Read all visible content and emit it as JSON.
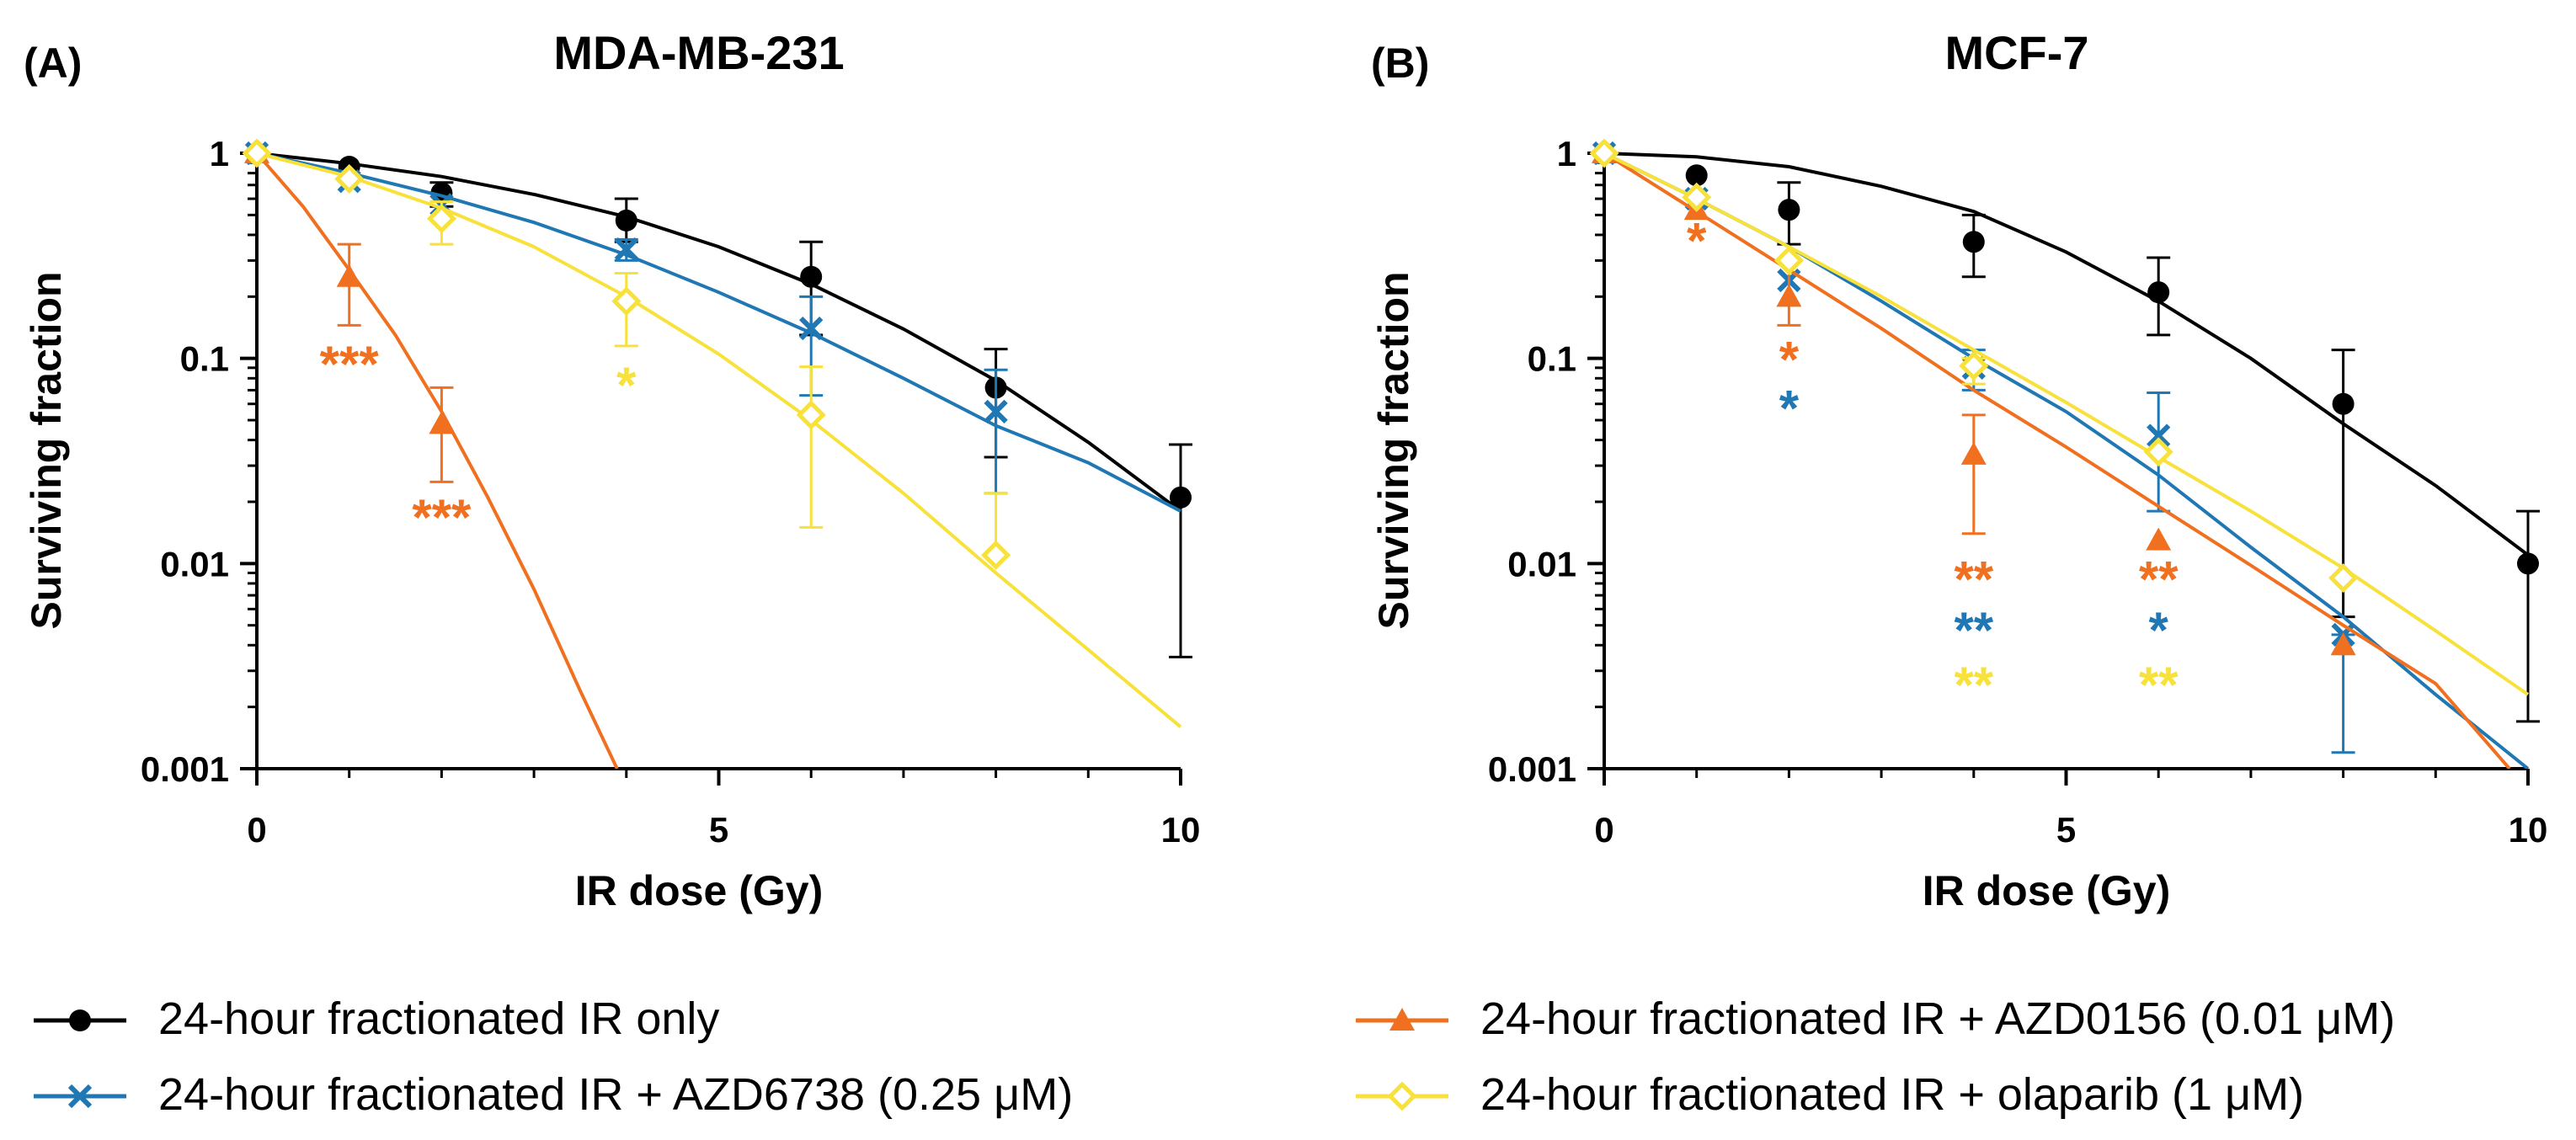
{
  "chart_data": [
    {
      "type": "scatter",
      "panel_label": "(A)",
      "title": "MDA-MB-231",
      "xlabel": "IR dose (Gy)",
      "ylabel": "Surviving fraction",
      "xlim": [
        0,
        10
      ],
      "ylim": [
        0.001,
        1
      ],
      "yscale": "log",
      "xticks": [
        0,
        5,
        10
      ],
      "xtick_labels": [
        "0",
        "5",
        "10"
      ],
      "yticks": [
        1,
        0.1,
        0.01,
        0.001
      ],
      "ytick_labels": [
        "1",
        "0.1",
        "0.01",
        "0.001"
      ],
      "series": [
        {
          "key": "ir",
          "name": "24-hour fractionated IR only",
          "color": "#000000",
          "marker": "circle",
          "x": [
            0,
            1,
            2,
            4,
            6,
            8,
            10
          ],
          "y": [
            1,
            0.86,
            0.64,
            0.47,
            0.25,
            0.072,
            0.021
          ],
          "err_low": [
            1,
            0.86,
            0.55,
            0.37,
            0.13,
            0.033,
            0.0035
          ],
          "err_high": [
            1,
            0.86,
            0.72,
            0.6,
            0.37,
            0.111,
            0.038
          ],
          "fit_x": [
            0,
            1,
            2,
            3,
            4,
            5,
            6,
            7,
            8,
            9,
            10
          ],
          "fit_y": [
            1,
            0.89,
            0.77,
            0.63,
            0.49,
            0.35,
            0.23,
            0.139,
            0.078,
            0.039,
            0.018
          ]
        },
        {
          "key": "azd6738",
          "name": "24-hour fractionated IR + AZD6738 (0.25 μM)",
          "color": "#1f77b4",
          "marker": "x",
          "x": [
            0,
            1,
            2,
            4,
            6,
            8
          ],
          "y": [
            1,
            0.73,
            0.56,
            0.34,
            0.14,
            0.055
          ],
          "err_low": [
            1,
            0.73,
            0.56,
            0.3,
            0.066,
            0.022
          ],
          "err_high": [
            1,
            0.73,
            0.56,
            0.38,
            0.2,
            0.088
          ],
          "fit_x": [
            0,
            1,
            2,
            3,
            4,
            5,
            6,
            7,
            8,
            9,
            10
          ],
          "fit_y": [
            1,
            0.8,
            0.62,
            0.46,
            0.32,
            0.21,
            0.133,
            0.08,
            0.047,
            0.031,
            0.018
          ]
        },
        {
          "key": "azd0156",
          "name": "24-hour fractionated IR + AZD0156 (0.01 μM)",
          "color": "#f07020",
          "marker": "triangle",
          "x": [
            0,
            1,
            2
          ],
          "y": [
            1,
            0.25,
            0.048
          ],
          "err_low": [
            1,
            0.145,
            0.025
          ],
          "err_high": [
            1,
            0.36,
            0.072
          ],
          "fit_x": [
            0,
            0.5,
            1,
            1.5,
            2,
            2.5,
            3,
            3.5,
            3.9
          ],
          "fit_y": [
            1,
            0.55,
            0.27,
            0.13,
            0.055,
            0.021,
            0.0075,
            0.0024,
            0.001
          ]
        },
        {
          "key": "olaparib",
          "name": "24-hour fractionated IR + olaparib (1 μM)",
          "color": "#f7e13a",
          "marker": "diamond",
          "x": [
            0,
            1,
            2,
            4,
            6,
            8
          ],
          "y": [
            1,
            0.75,
            0.48,
            0.19,
            0.053,
            0.011
          ],
          "err_low": [
            1,
            0.75,
            0.36,
            0.115,
            0.015,
            0.011
          ],
          "err_high": [
            1,
            0.75,
            0.58,
            0.26,
            0.091,
            0.022
          ],
          "fit_x": [
            0,
            1,
            2,
            3,
            4,
            5,
            6,
            7,
            8,
            9,
            10
          ],
          "fit_y": [
            1,
            0.77,
            0.54,
            0.35,
            0.2,
            0.105,
            0.05,
            0.022,
            0.009,
            0.0038,
            0.0016
          ]
        }
      ],
      "annotations": [
        {
          "text": "***",
          "series": "azd0156",
          "x": 1,
          "y": 0.095
        },
        {
          "text": "***",
          "series": "azd0156",
          "x": 2,
          "y": 0.017
        },
        {
          "text": "*",
          "series": "olaparib",
          "x": 4,
          "y": 0.075
        }
      ]
    },
    {
      "type": "scatter",
      "panel_label": "(B)",
      "title": "MCF-7",
      "xlabel": "IR dose (Gy)",
      "ylabel": "Surviving fraction",
      "xlim": [
        0,
        10
      ],
      "ylim": [
        0.001,
        1
      ],
      "yscale": "log",
      "xticks": [
        0,
        5,
        10
      ],
      "xtick_labels": [
        "0",
        "5",
        "10"
      ],
      "yticks": [
        1,
        0.1,
        0.01,
        0.001
      ],
      "ytick_labels": [
        "1",
        "0.1",
        "0.01",
        "0.001"
      ],
      "series": [
        {
          "key": "ir",
          "name": "24-hour fractionated IR only",
          "color": "#000000",
          "marker": "circle",
          "x": [
            0,
            1,
            2,
            4,
            6,
            8,
            10
          ],
          "y": [
            1,
            0.78,
            0.53,
            0.37,
            0.21,
            0.06,
            0.01
          ],
          "err_low": [
            1,
            0.78,
            0.36,
            0.25,
            0.13,
            0.0055,
            0.0017
          ],
          "err_high": [
            1,
            0.78,
            0.72,
            0.5,
            0.31,
            0.11,
            0.018
          ],
          "fit_x": [
            0,
            1,
            2,
            3,
            4,
            5,
            6,
            7,
            8,
            9,
            10
          ],
          "fit_y": [
            1,
            0.96,
            0.86,
            0.69,
            0.52,
            0.33,
            0.19,
            0.1,
            0.048,
            0.024,
            0.011
          ]
        },
        {
          "key": "azd6738",
          "name": "24-hour fractionated IR + AZD6738 (0.25 μM)",
          "color": "#1f77b4",
          "marker": "x",
          "x": [
            0,
            1,
            2,
            4,
            6,
            8
          ],
          "y": [
            1,
            0.6,
            0.24,
            0.09,
            0.042,
            0.0045
          ],
          "err_low": [
            1,
            0.6,
            0.24,
            0.07,
            0.018,
            0.0012
          ],
          "err_high": [
            1,
            0.6,
            0.24,
            0.11,
            0.068,
            0.0045
          ],
          "fit_x": [
            0,
            1,
            2,
            3,
            4,
            5,
            6,
            7,
            8,
            9,
            10
          ],
          "fit_y": [
            1,
            0.6,
            0.35,
            0.19,
            0.1,
            0.055,
            0.027,
            0.012,
            0.0055,
            0.0023,
            0.001
          ]
        },
        {
          "key": "azd0156",
          "name": "24-hour fractionated IR + AZD0156 (0.01 μM)",
          "color": "#f07020",
          "marker": "triangle",
          "x": [
            0,
            1,
            2,
            4,
            6,
            8
          ],
          "y": [
            1,
            0.53,
            0.2,
            0.034,
            0.013,
            0.004
          ],
          "err_low": [
            1,
            0.53,
            0.145,
            0.014,
            0.013,
            0.004
          ],
          "err_high": [
            1,
            0.53,
            0.3,
            0.053,
            0.013,
            0.004
          ],
          "fit_x": [
            0,
            1,
            2,
            3,
            4,
            5,
            6,
            7,
            8,
            9,
            9.8
          ],
          "fit_y": [
            1,
            0.52,
            0.27,
            0.14,
            0.07,
            0.037,
            0.019,
            0.0098,
            0.005,
            0.0026,
            0.001
          ]
        },
        {
          "key": "olaparib",
          "name": "24-hour fractionated IR + olaparib (1 μM)",
          "color": "#f7e13a",
          "marker": "diamond",
          "x": [
            0,
            1,
            2,
            4,
            6,
            8
          ],
          "y": [
            1,
            0.61,
            0.3,
            0.092,
            0.035,
            0.0085
          ],
          "err_low": [
            1,
            0.61,
            0.3,
            0.075,
            0.035,
            0.0085
          ],
          "err_high": [
            1,
            0.61,
            0.3,
            0.1,
            0.035,
            0.0085
          ],
          "fit_x": [
            0,
            1,
            2,
            3,
            4,
            5,
            6,
            7,
            8,
            9,
            10
          ],
          "fit_y": [
            1,
            0.6,
            0.35,
            0.2,
            0.11,
            0.061,
            0.033,
            0.018,
            0.0095,
            0.0047,
            0.0023
          ]
        }
      ],
      "annotations": [
        {
          "text": "*",
          "series": "azd0156",
          "x": 1,
          "y": 0.38
        },
        {
          "text": "*",
          "series": "azd0156",
          "x": 2,
          "y": 0.1
        },
        {
          "text": "*",
          "series": "azd6738",
          "x": 2,
          "y": 0.058
        },
        {
          "text": "**",
          "series": "azd0156",
          "x": 4,
          "y": 0.0085
        },
        {
          "text": "**",
          "series": "azd6738",
          "x": 4,
          "y": 0.0048
        },
        {
          "text": "**",
          "series": "olaparib",
          "x": 4,
          "y": 0.0026
        },
        {
          "text": "**",
          "series": "azd0156",
          "x": 6,
          "y": 0.0085
        },
        {
          "text": "*",
          "series": "azd6738",
          "x": 6,
          "y": 0.0048
        },
        {
          "text": "**",
          "series": "olaparib",
          "x": 6,
          "y": 0.0026
        }
      ]
    }
  ],
  "legend": {
    "position": "bottom",
    "items": [
      {
        "series": "ir",
        "label": "24-hour fractionated IR only"
      },
      {
        "series": "azd0156",
        "label": "24-hour fractionated IR + AZD0156 (0.01 μM)"
      },
      {
        "series": "azd6738",
        "label": "24-hour fractionated IR + AZD6738 (0.25 μM)"
      },
      {
        "series": "olaparib",
        "label": "24-hour fractionated IR + olaparib (1 μM)"
      }
    ]
  }
}
